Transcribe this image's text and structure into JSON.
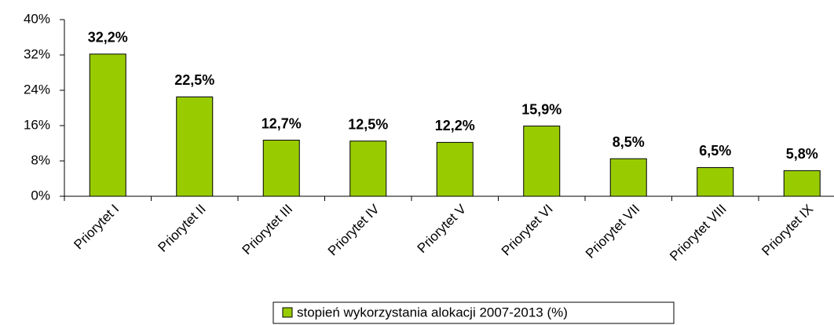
{
  "chart_data": {
    "type": "bar",
    "categories": [
      "Priorytet I",
      "Priorytet II",
      "Priorytet III",
      "Priorytet IV",
      "Priorytet V",
      "Priorytet VI",
      "Priorytet VII",
      "Priorytet VIII",
      "Priorytet IX"
    ],
    "series": [
      {
        "name": "stopień wykorzystania alokacji 2007-2013 (%)",
        "color": "#99cc00",
        "values": [
          32.2,
          22.5,
          12.7,
          12.5,
          12.2,
          15.9,
          8.5,
          6.5,
          5.8
        ],
        "value_labels": [
          "32,2%",
          "22,5%",
          "12,7%",
          "12,5%",
          "12,2%",
          "15,9%",
          "8,5%",
          "6,5%",
          "5,8%"
        ]
      }
    ],
    "ylim": [
      0,
      40
    ],
    "yticks": [
      {
        "value": 0,
        "label": "0%"
      },
      {
        "value": 8,
        "label": "8%"
      },
      {
        "value": 16,
        "label": "16%"
      },
      {
        "value": 24,
        "label": "24%"
      },
      {
        "value": 32,
        "label": "32%"
      },
      {
        "value": 40,
        "label": "40%"
      }
    ],
    "legend": "bottom"
  }
}
